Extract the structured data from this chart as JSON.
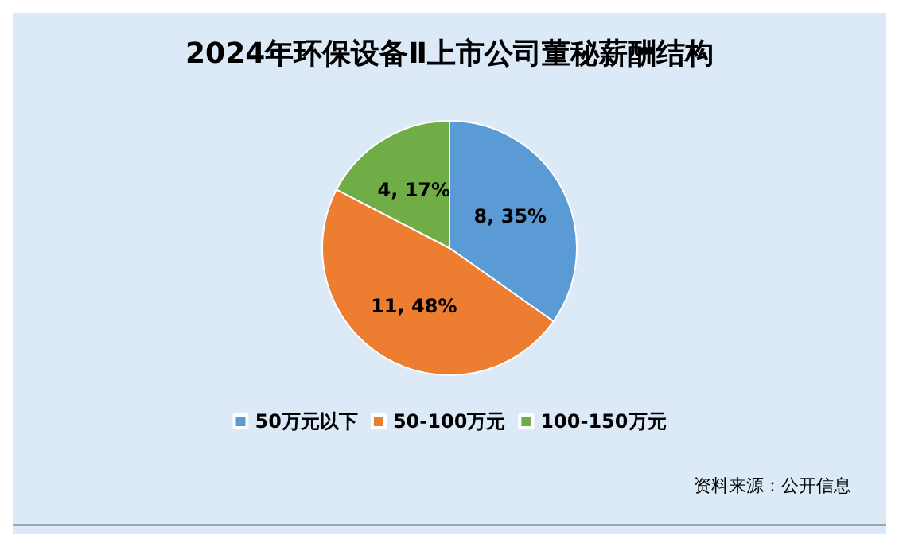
{
  "chart_data": {
    "type": "pie",
    "title": "2024年环保设备Ⅱ上市公司董秘薪酬结构",
    "categories": [
      "50万元以下",
      "50-100万元",
      "100-150万元"
    ],
    "values": [
      8,
      11,
      4
    ],
    "colors": [
      "#5b9bd5",
      "#ed7d31",
      "#70ad47"
    ],
    "value_labels": [
      "8, 35%",
      "11, 48%",
      "4, 17%"
    ],
    "legend": "bottom",
    "annotations": [
      "资料来源：公开信息"
    ]
  }
}
